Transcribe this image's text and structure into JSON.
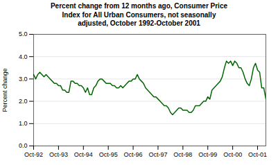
{
  "chart_data": {
    "type": "line",
    "title": "Percent change from 12 months ago, Consumer Price\nIndex for All Urban Consumers, not seasonally\nadjusted, October 1992-October 2001",
    "ylabel": "Percent change",
    "color": "#006600",
    "grid": true,
    "ylim": [
      0.0,
      5.0
    ],
    "yticks": [
      {
        "value": 0.0,
        "label": "0.0"
      },
      {
        "value": 1.0,
        "label": "1.0"
      },
      {
        "value": 2.0,
        "label": "2.0"
      },
      {
        "value": 3.0,
        "label": "3.0"
      },
      {
        "value": 4.0,
        "label": "4.0"
      },
      {
        "value": 5.0,
        "label": "5.0"
      }
    ],
    "categories": [
      "Oct-92",
      null,
      null,
      null,
      null,
      null,
      null,
      null,
      null,
      null,
      null,
      null,
      "Oct-93",
      null,
      null,
      null,
      null,
      null,
      null,
      null,
      null,
      null,
      null,
      null,
      "Oct-94",
      null,
      null,
      null,
      null,
      null,
      null,
      null,
      null,
      null,
      null,
      null,
      "Oct-95",
      null,
      null,
      null,
      null,
      null,
      null,
      null,
      null,
      null,
      null,
      null,
      "Oct-96",
      null,
      null,
      null,
      null,
      null,
      null,
      null,
      null,
      null,
      null,
      null,
      "Oct-97",
      null,
      null,
      null,
      null,
      null,
      null,
      null,
      null,
      null,
      null,
      null,
      "Oct-98",
      null,
      null,
      null,
      null,
      null,
      null,
      null,
      null,
      null,
      null,
      null,
      "Oct-99",
      null,
      null,
      null,
      null,
      null,
      null,
      null,
      null,
      null,
      null,
      null,
      "Oct-00",
      null,
      null,
      null,
      null,
      null,
      null,
      null,
      null,
      null,
      null,
      null,
      "Oct-01",
      null,
      null,
      null,
      null
    ],
    "values": [
      3.2,
      3.0,
      3.2,
      3.3,
      3.2,
      3.1,
      3.2,
      3.1,
      3.0,
      2.9,
      2.8,
      2.8,
      2.7,
      2.7,
      2.5,
      2.5,
      2.4,
      2.4,
      2.9,
      2.9,
      2.8,
      2.8,
      2.7,
      2.7,
      2.6,
      2.4,
      2.6,
      2.3,
      2.3,
      2.6,
      2.7,
      2.9,
      3.0,
      3.0,
      2.9,
      2.8,
      2.8,
      2.8,
      2.7,
      2.7,
      2.6,
      2.6,
      2.7,
      2.6,
      2.7,
      2.8,
      2.9,
      2.9,
      3.0,
      3.0,
      3.2,
      3.0,
      2.9,
      2.8,
      2.6,
      2.5,
      2.4,
      2.3,
      2.2,
      2.2,
      2.1,
      2.0,
      1.9,
      1.8,
      1.8,
      1.7,
      1.5,
      1.4,
      1.5,
      1.6,
      1.7,
      1.7,
      1.6,
      1.6,
      1.6,
      1.5,
      1.5,
      1.6,
      1.8,
      1.8,
      1.8,
      1.9,
      2.0,
      2.0,
      2.2,
      2.1,
      2.5,
      2.6,
      2.7,
      2.8,
      2.9,
      3.1,
      3.5,
      3.8,
      3.7,
      3.8,
      3.6,
      3.8,
      3.7,
      3.5,
      3.5,
      3.3,
      3.0,
      2.8,
      2.7,
      3.0,
      3.5,
      3.7,
      3.4,
      3.3,
      2.6,
      2.6,
      2.1
    ]
  }
}
